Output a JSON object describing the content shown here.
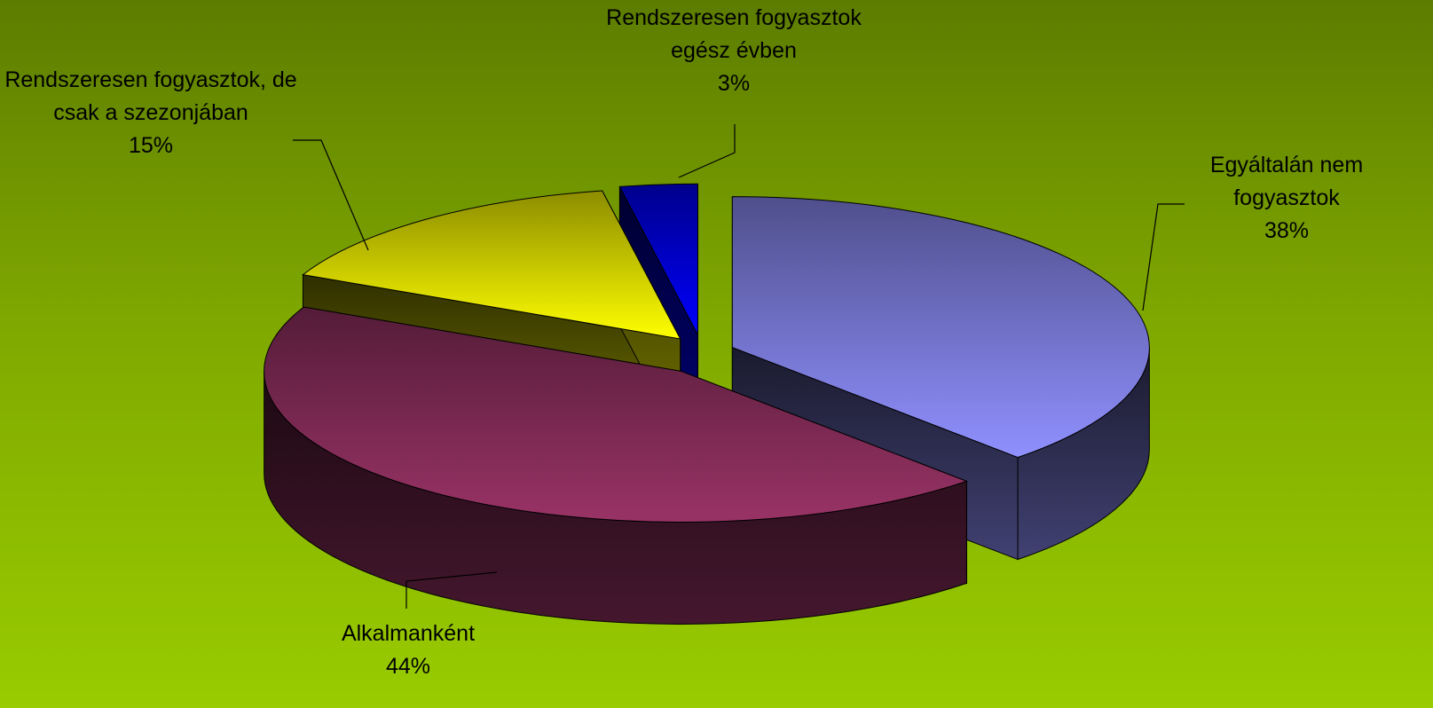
{
  "chart_data": {
    "type": "pie",
    "categories": [
      "Egyáltalán nem fogyasztok",
      "Alkalmanként",
      "Rendszeresen fogyasztok, de csak a szezonjában",
      "Rendszeresen fogyasztok egész évben"
    ],
    "values": [
      38,
      44,
      15,
      3
    ],
    "value_labels": [
      "38%",
      "44%",
      "15%",
      "3%"
    ],
    "colors": [
      "#9090ff",
      "#993366",
      "#ffff00",
      "#0000ff"
    ],
    "three_d": true
  }
}
